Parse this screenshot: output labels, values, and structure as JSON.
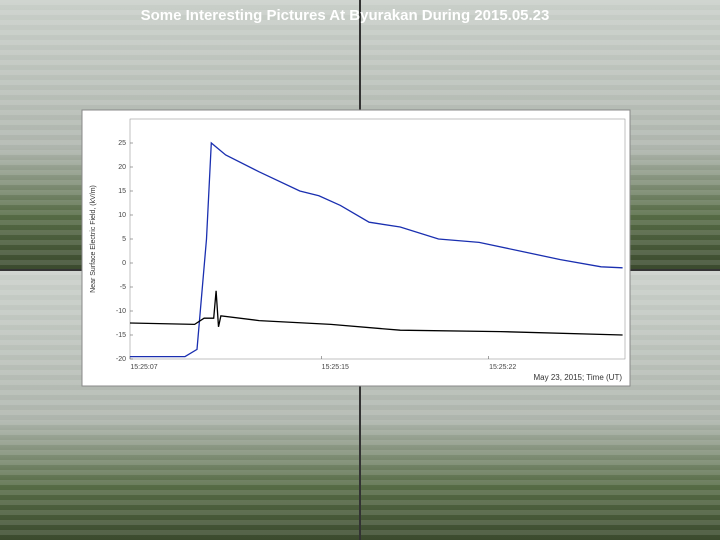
{
  "chart_data": {
    "type": "line",
    "title": "Some Interesting Pictures At Byurakan During 2015.05.23",
    "y_label": "Near Surface Electric Field, (kV/m)",
    "x_label": "May 23, 2015; Time (UT)",
    "xlim": [
      7,
      27.7
    ],
    "xticks": [
      {
        "value": 7,
        "label": "15:25:07"
      },
      {
        "value": 15,
        "label": "15:25:15"
      },
      {
        "value": 22,
        "label": "15:25:22"
      }
    ],
    "ylim": [
      -20,
      30
    ],
    "yticks": [
      -20,
      -15,
      -10,
      -5,
      0,
      5,
      10,
      15,
      20,
      25
    ],
    "series": [
      {
        "color": "#1a2fb0",
        "x": [
          7,
          9.3,
          9.8,
          10.2,
          10.4,
          11,
          12.4,
          14.1,
          14.9,
          15.8,
          17,
          18.3,
          19.9,
          21.6,
          23.3,
          25,
          26.7,
          27.6
        ],
        "values": [
          -19.5,
          -19.5,
          -18,
          5,
          25,
          22.5,
          19,
          15,
          14,
          12,
          8.5,
          7.5,
          5,
          4.3,
          2.5,
          0.7,
          -0.8,
          -1
        ]
      },
      {
        "color": "#000000",
        "x": [
          7,
          9.7,
          10.1,
          10.5,
          10.6,
          10.7,
          10.8,
          12.4,
          15.4,
          18.3,
          22.5,
          27.6
        ],
        "values": [
          -12.5,
          -12.8,
          -11.5,
          -11.5,
          -5.8,
          -13.3,
          -11,
          -12,
          -12.8,
          -14,
          -14.3,
          -15
        ]
      }
    ]
  }
}
